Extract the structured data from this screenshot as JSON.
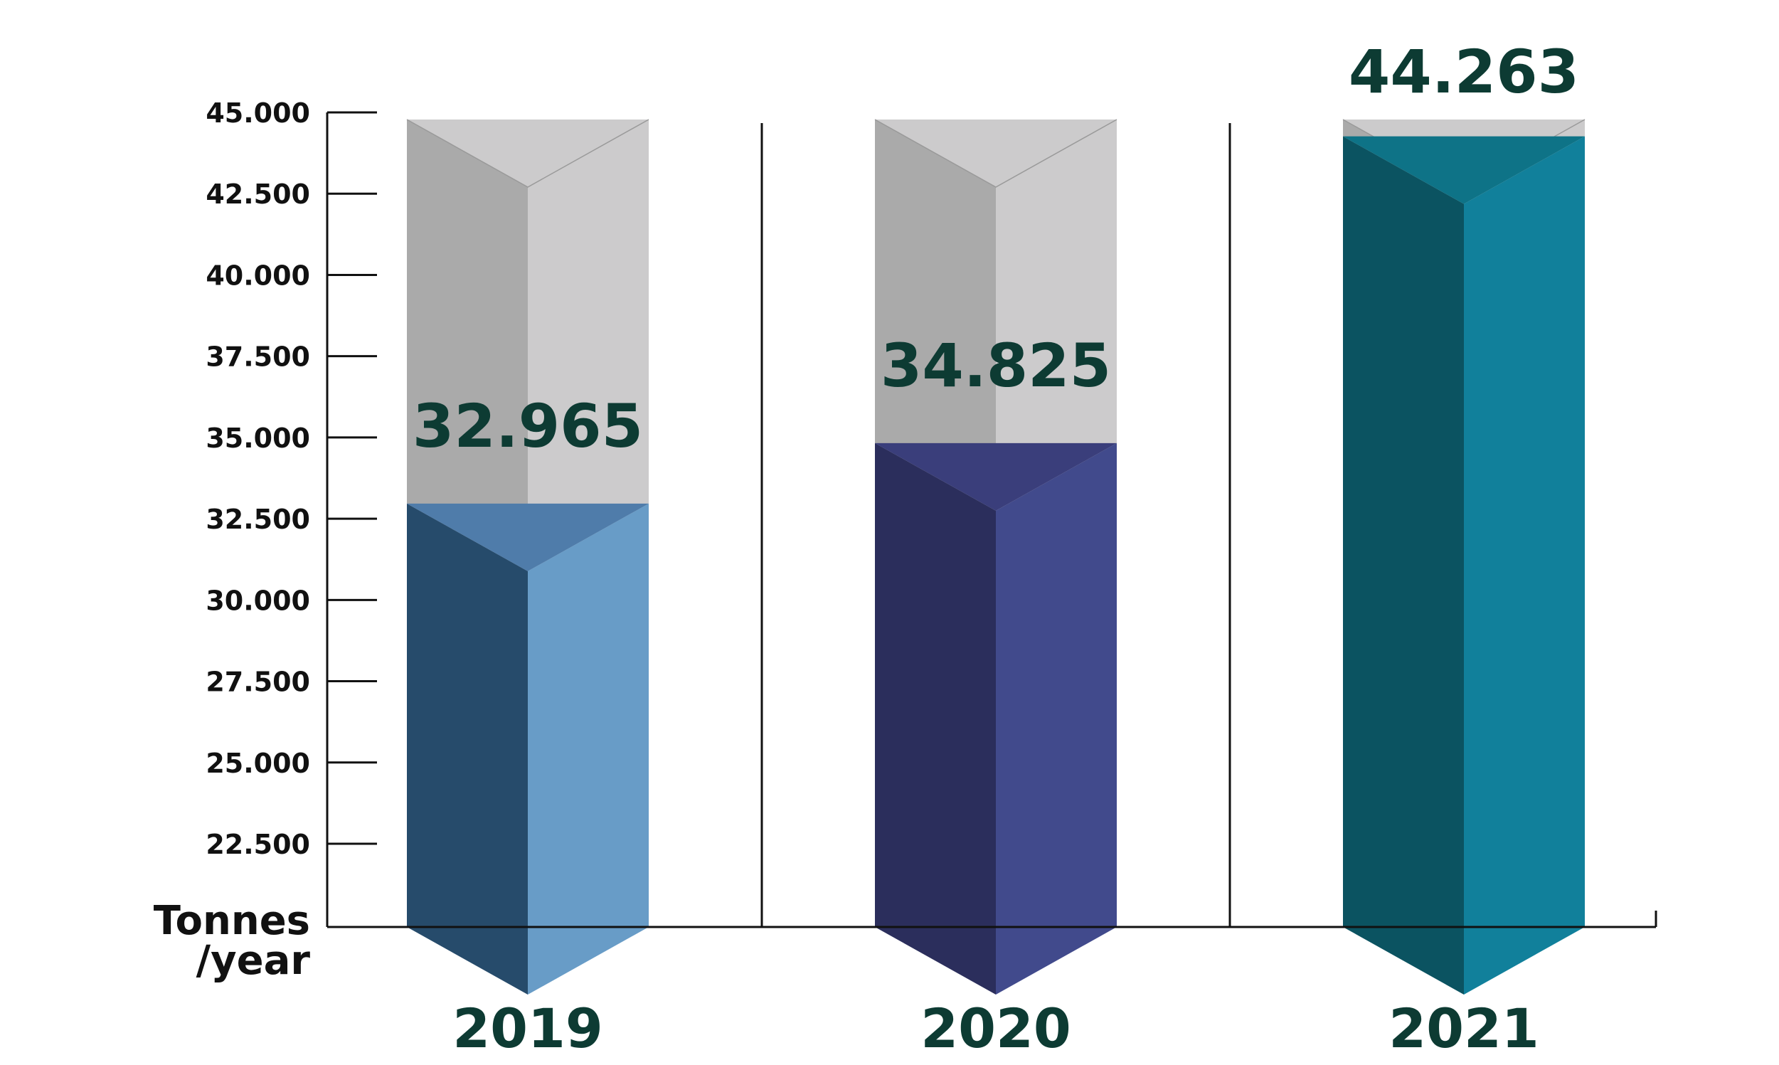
{
  "chart_data": {
    "type": "bar",
    "categories": [
      "2019",
      "2020",
      "2021"
    ],
    "values": [
      32965,
      34825,
      44263
    ],
    "value_labels": [
      "32.965",
      "34.825",
      "44.263"
    ],
    "y_ticks": [
      22500,
      25000,
      27500,
      30000,
      32500,
      35000,
      37500,
      40000,
      42500,
      45000
    ],
    "y_tick_labels": [
      "22.500",
      "25.000",
      "27.500",
      "30.000",
      "32.500",
      "35.000",
      "37.500",
      "40.000",
      "42.500",
      "45.000"
    ],
    "ylabel": "Tonnes /year",
    "ylabel_lines": [
      "Tonnes",
      "/year"
    ],
    "ylim": [
      20000,
      45000
    ],
    "grid": false,
    "legend": "none",
    "bar_colors": [
      {
        "dark": "#264b6b",
        "light": "#689cc7",
        "top": "#4f7caa"
      },
      {
        "dark": "#2b2e5c",
        "light": "#414a8c",
        "top": "#3a3e7b"
      },
      {
        "dark": "#0b5361",
        "light": "#11809b",
        "top": "#0e7387"
      }
    ],
    "background_colors": {
      "dark": "#aaaaaa",
      "light": "#cccbcc"
    },
    "text_color": "#0d3b33"
  }
}
